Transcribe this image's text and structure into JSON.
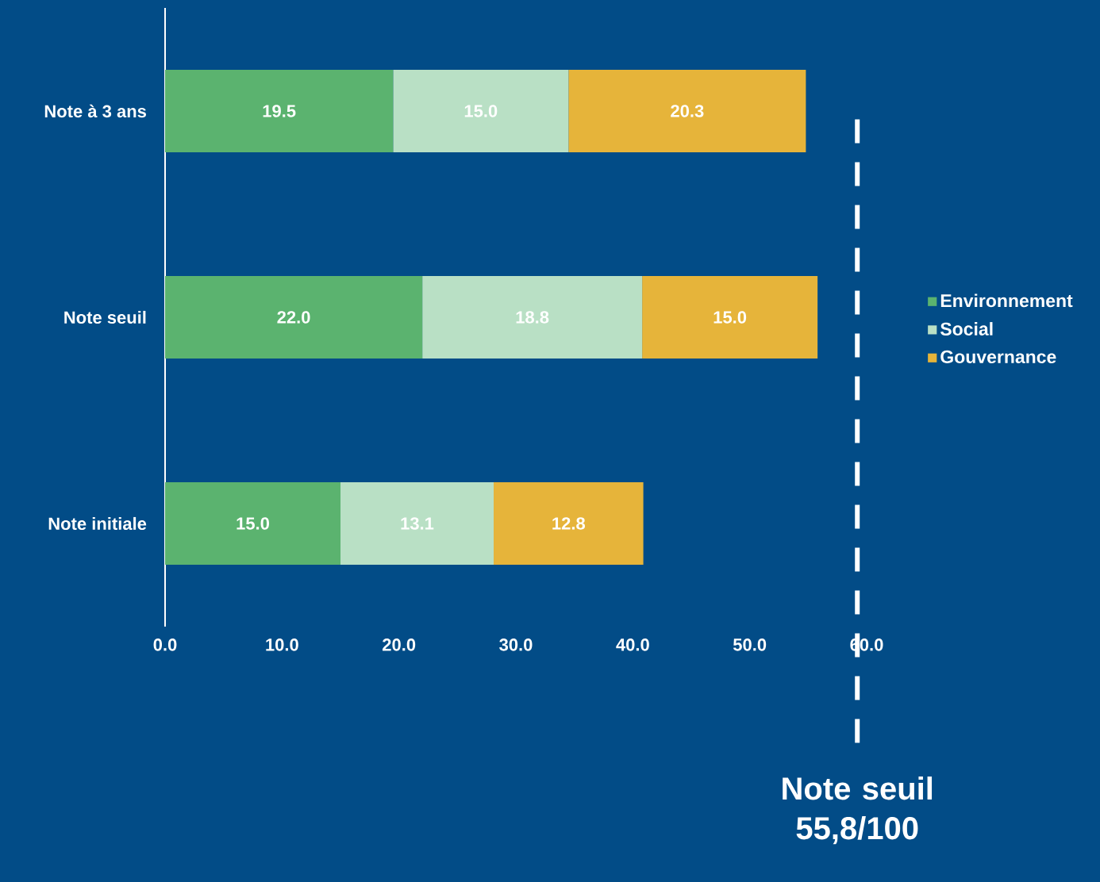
{
  "chart_data": {
    "type": "bar",
    "orientation": "horizontal",
    "stacked": true,
    "categories": [
      "Note à 3 ans",
      "Note seuil",
      "Note initiale"
    ],
    "series": [
      {
        "name": "Environnement",
        "color": "#5bb36f",
        "values": [
          19.5,
          22.0,
          15.0
        ],
        "value_labels": [
          "19.5",
          "22.0",
          "15.0"
        ]
      },
      {
        "name": "Social",
        "color": "#b9e0c5",
        "values": [
          15.0,
          18.8,
          13.1
        ],
        "value_labels": [
          "15.0",
          "18.8",
          "13.1"
        ]
      },
      {
        "name": "Gouvernance",
        "color": "#e6b43a",
        "values": [
          20.3,
          15.0,
          12.8
        ],
        "value_labels": [
          "20.3",
          "15.0",
          "12.8"
        ]
      }
    ],
    "xlim": [
      0,
      60
    ],
    "xticks": [
      {
        "value": 0,
        "label": "0.0"
      },
      {
        "value": 10,
        "label": "10.0"
      },
      {
        "value": 20,
        "label": "20.0"
      },
      {
        "value": 30,
        "label": "30.0"
      },
      {
        "value": 40,
        "label": "40.0"
      },
      {
        "value": 50,
        "label": "50.0"
      },
      {
        "value": 60,
        "label": "60.0"
      }
    ],
    "ref_lines": [
      {
        "axis": "x",
        "value": 59.2,
        "label": "Note seuil 55,8/100",
        "color": "#ffffff",
        "line_style": "dashed"
      }
    ],
    "legend": "right",
    "grid": false
  }
}
